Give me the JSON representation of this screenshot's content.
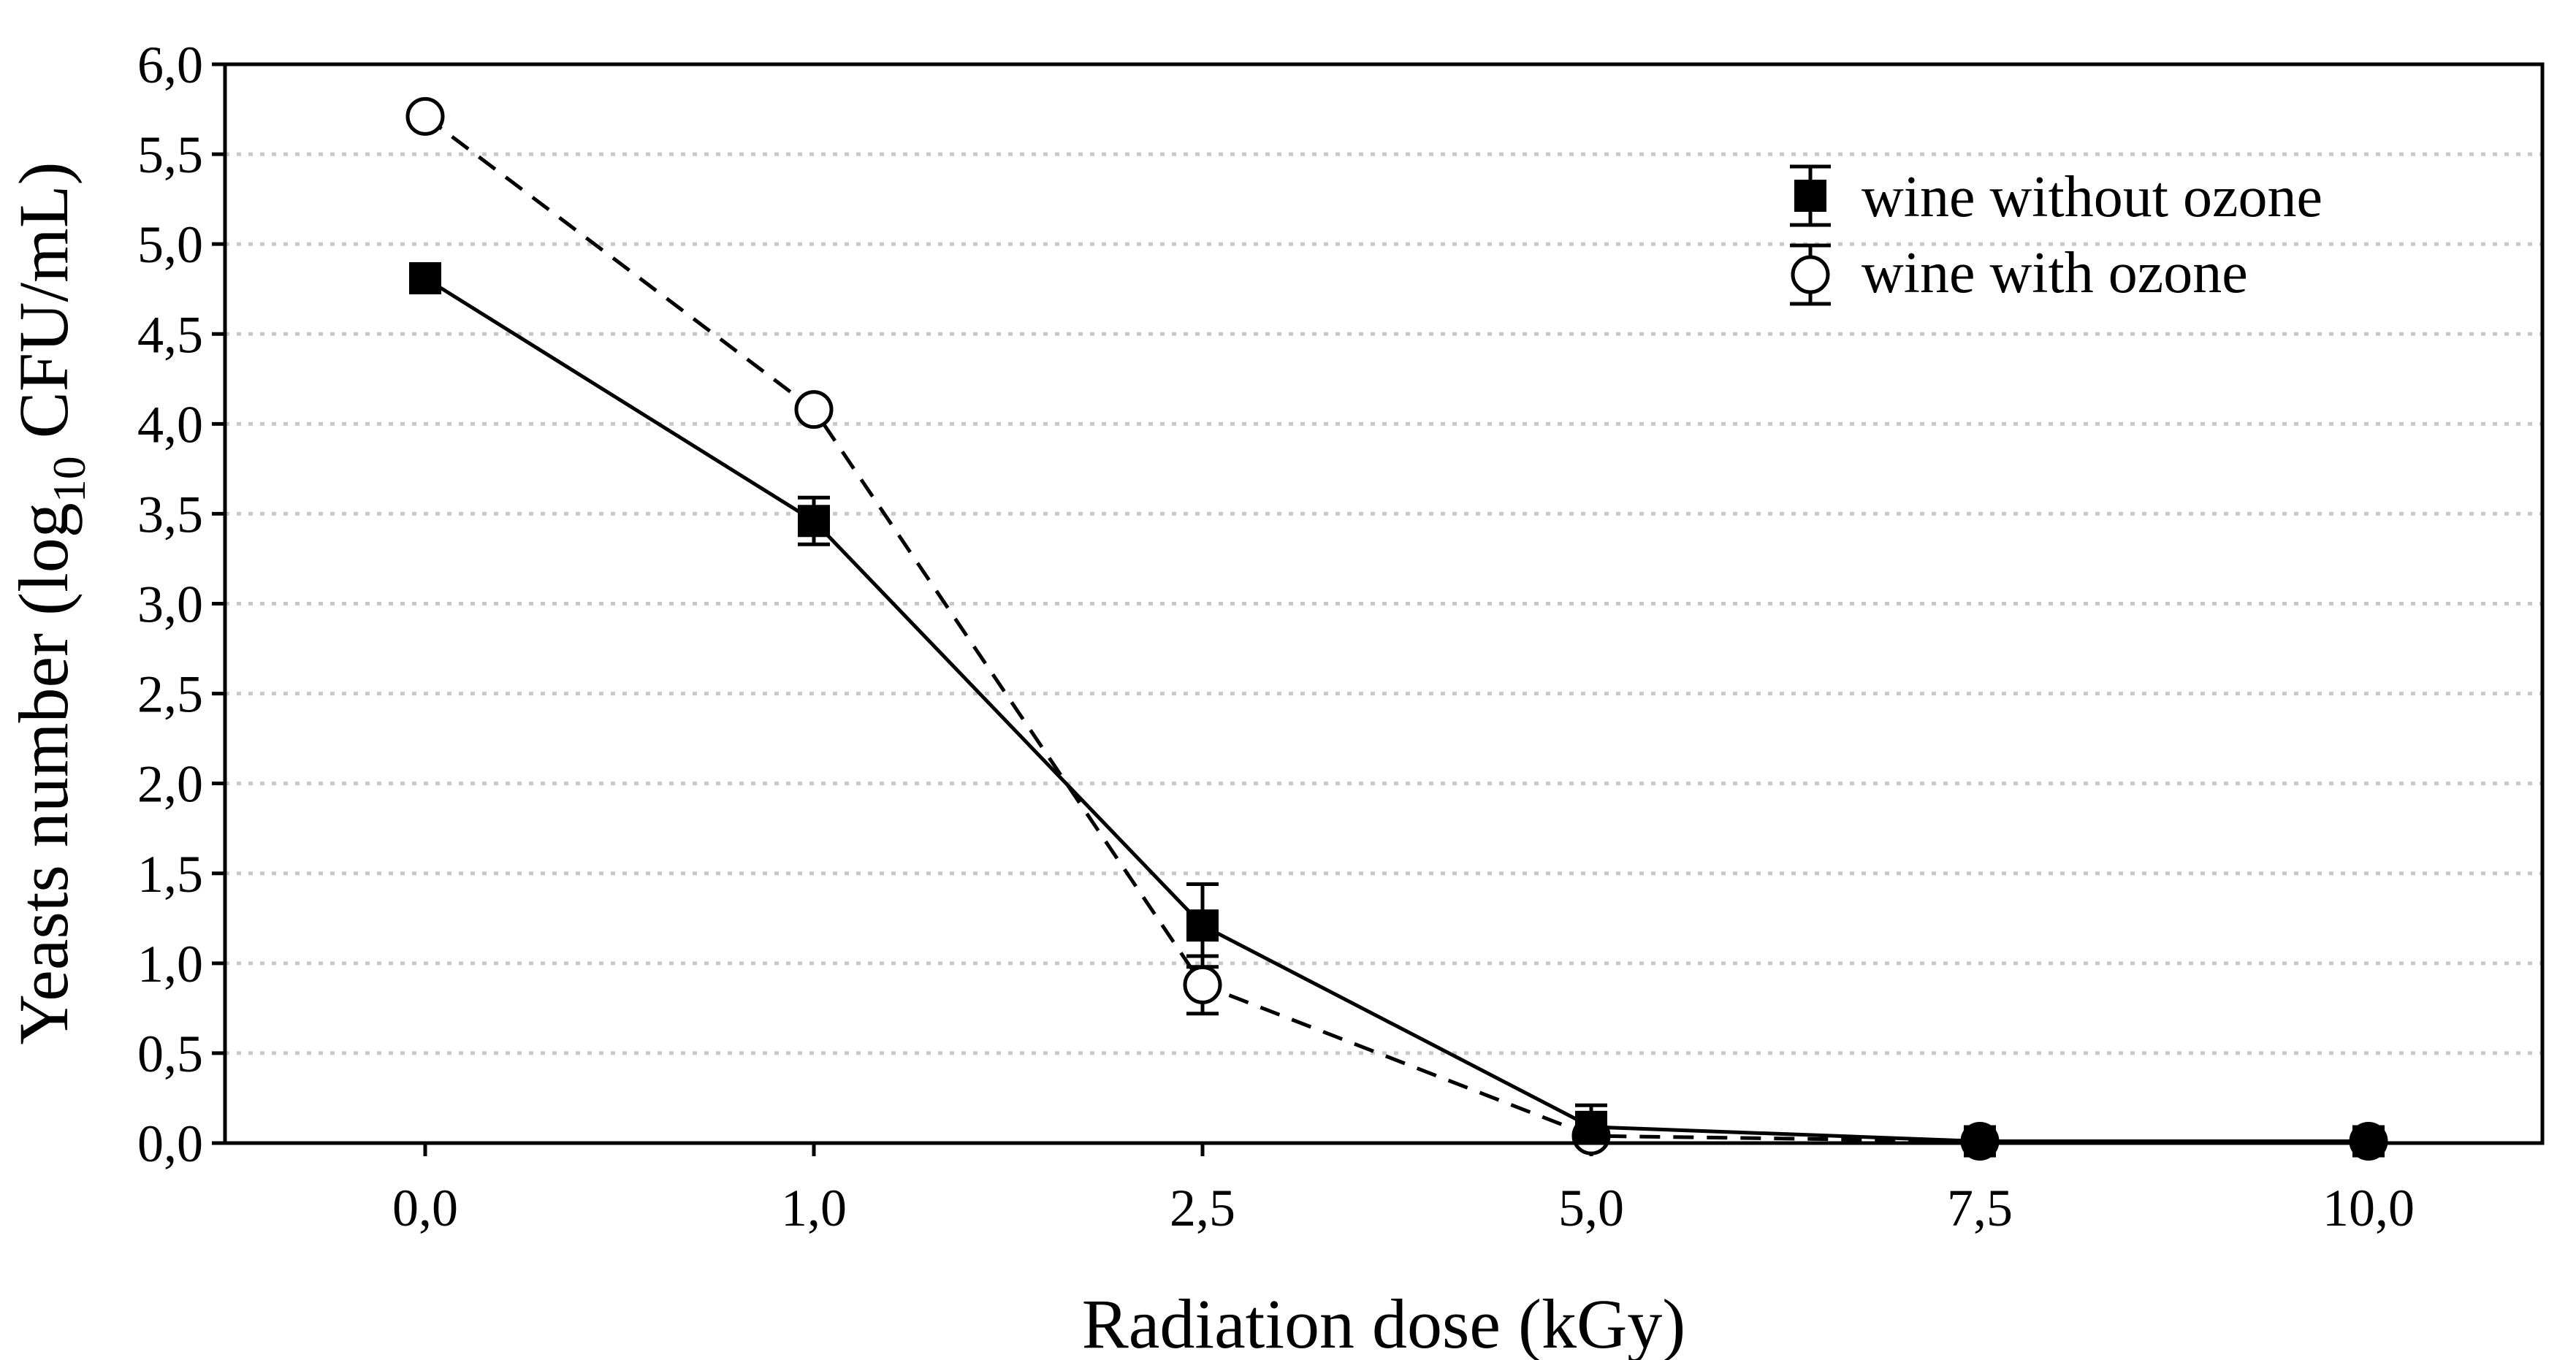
{
  "chart_data": {
    "type": "line",
    "xlabel": "Radiation dose (kGy)",
    "ylabel": {
      "prefix": "Yeasts number (log",
      "subscript": "10",
      "suffix": " CFU/mL)"
    },
    "categories": [
      "0,0",
      "1,0",
      "2,5",
      "5,0",
      "7,5",
      "10,0"
    ],
    "ylim": [
      0,
      6
    ],
    "yticks": [
      "0,0",
      "0,5",
      "1,0",
      "1,5",
      "2,0",
      "2,5",
      "3,0",
      "3,5",
      "4,0",
      "4,5",
      "5,0",
      "5,5",
      "6,0"
    ],
    "grid": true,
    "legend_position": "top-right",
    "series": [
      {
        "name": "wine without ozone",
        "marker": "filled-square",
        "line": "solid",
        "values": [
          4.81,
          3.46,
          1.21,
          0.09,
          0.01,
          0.01
        ],
        "errors": [
          0.04,
          0.13,
          0.23,
          0.12,
          0.02,
          0.02
        ]
      },
      {
        "name": "wine with ozone",
        "marker": "open-circle",
        "line": "dashed",
        "values": [
          5.71,
          4.08,
          0.88,
          0.04,
          0.01,
          0.01
        ],
        "errors": [
          0.04,
          0.03,
          0.16,
          0.02,
          0.02,
          0.02
        ]
      }
    ]
  }
}
